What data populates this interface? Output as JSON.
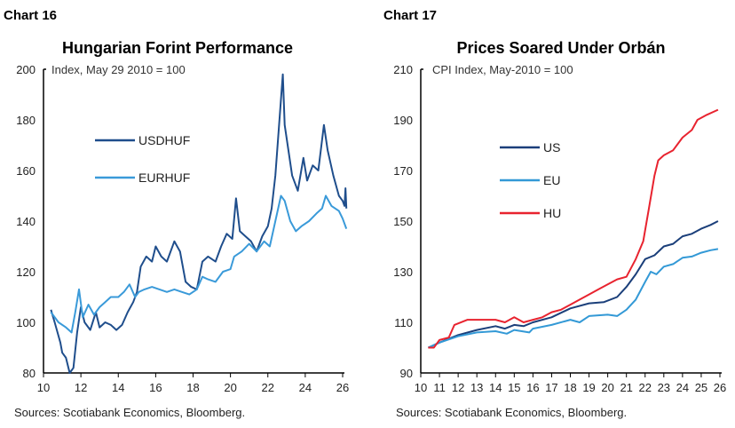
{
  "chart_data": [
    {
      "type": "line",
      "header": "Chart 16",
      "title": "Hungarian Forint Performance",
      "subtitle": "Index, May 29 2010 = 100",
      "source": "Sources: Scotiabank Economics, Bloomberg.",
      "xlim": [
        10,
        26
      ],
      "ylim": [
        80,
        200
      ],
      "x_ticks": [
        "10",
        "12",
        "14",
        "16",
        "18",
        "20",
        "22",
        "24",
        "26"
      ],
      "y_ticks": [
        "80",
        "100",
        "120",
        "140",
        "160",
        "180",
        "200"
      ],
      "legend_placement": "upper-left",
      "grid": false,
      "series": [
        {
          "name": "USDHUF",
          "color": "#1f4e8c",
          "x": [
            10.4,
            10.6,
            10.9,
            11.0,
            11.2,
            11.4,
            11.6,
            11.8,
            12.0,
            12.2,
            12.5,
            12.8,
            13.0,
            13.3,
            13.6,
            13.9,
            14.2,
            14.5,
            14.8,
            15.0,
            15.2,
            15.5,
            15.8,
            16.0,
            16.3,
            16.6,
            17.0,
            17.3,
            17.6,
            17.9,
            18.2,
            18.5,
            18.8,
            19.2,
            19.5,
            19.8,
            20.1,
            20.3,
            20.5,
            20.8,
            21.1,
            21.4,
            21.7,
            22.0,
            22.2,
            22.4,
            22.6,
            22.8,
            22.9,
            23.1,
            23.3,
            23.6,
            23.9,
            24.1,
            24.4,
            24.7,
            25.0,
            25.2,
            25.5,
            25.8,
            26.0,
            26.1,
            26.15,
            26.2
          ],
          "y": [
            105,
            100,
            92,
            88,
            86,
            80,
            82,
            96,
            106,
            100,
            97,
            104,
            98,
            100,
            99,
            97,
            99,
            104,
            108,
            112,
            122,
            126,
            124,
            130,
            126,
            124,
            132,
            128,
            116,
            114,
            113,
            124,
            126,
            124,
            130,
            135,
            133,
            149,
            136,
            134,
            132,
            128,
            134,
            138,
            145,
            158,
            178,
            198,
            178,
            168,
            158,
            152,
            165,
            156,
            162,
            160,
            178,
            168,
            158,
            150,
            148,
            146,
            153,
            145
          ]
        },
        {
          "name": "EURHUF",
          "color": "#3a9ad9",
          "x": [
            10.4,
            10.8,
            11.2,
            11.5,
            11.7,
            11.9,
            12.1,
            12.4,
            12.7,
            13.0,
            13.3,
            13.6,
            14.0,
            14.3,
            14.6,
            14.9,
            15.1,
            15.4,
            15.8,
            16.2,
            16.6,
            17.0,
            17.4,
            17.8,
            18.2,
            18.5,
            18.8,
            19.2,
            19.6,
            20.0,
            20.2,
            20.6,
            21.0,
            21.4,
            21.8,
            22.1,
            22.4,
            22.7,
            22.9,
            23.2,
            23.5,
            23.8,
            24.2,
            24.6,
            24.9,
            25.1,
            25.4,
            25.8,
            26.0,
            26.2
          ],
          "y": [
            104,
            100,
            98,
            96,
            104,
            113,
            102,
            107,
            103,
            106,
            108,
            110,
            110,
            112,
            115,
            110,
            112,
            113,
            114,
            113,
            112,
            113,
            112,
            111,
            113,
            118,
            117,
            116,
            120,
            121,
            126,
            128,
            131,
            128,
            132,
            130,
            140,
            150,
            148,
            140,
            136,
            138,
            140,
            143,
            145,
            150,
            146,
            144,
            141,
            137
          ]
        }
      ]
    },
    {
      "type": "line",
      "header": "Chart 17",
      "title": "Prices Soared Under Orbán",
      "subtitle": "CPI Index, May-2010 = 100",
      "source": "Sources: Scotiabank Economics, Bloomberg.",
      "xlim": [
        10,
        26
      ],
      "ylim": [
        90,
        210
      ],
      "x_ticks": [
        "10",
        "11",
        "12",
        "13",
        "14",
        "15",
        "16",
        "17",
        "18",
        "19",
        "20",
        "21",
        "22",
        "23",
        "24",
        "25",
        "26"
      ],
      "y_ticks": [
        "90",
        "110",
        "130",
        "150",
        "170",
        "190",
        "210"
      ],
      "legend_placement": "upper-left",
      "grid": false,
      "series": [
        {
          "name": "US",
          "color": "#1b3f7a",
          "x": [
            10.4,
            11,
            12,
            13,
            14,
            14.5,
            15,
            15.5,
            16,
            17,
            18,
            19,
            19.8,
            20.5,
            21,
            21.5,
            22,
            22.5,
            23,
            23.5,
            24,
            24.5,
            25,
            25.5,
            25.9
          ],
          "y": [
            100,
            102,
            105,
            107,
            108.5,
            107.5,
            109,
            108.5,
            110,
            112,
            115.5,
            117.5,
            118,
            120,
            124,
            129,
            135,
            136.5,
            140,
            141,
            144,
            145,
            147,
            148.5,
            150
          ]
        },
        {
          "name": "EU",
          "color": "#3399d6",
          "x": [
            10.4,
            11,
            12,
            13,
            14,
            14.6,
            15,
            15.8,
            16,
            17,
            18,
            18.5,
            19,
            20,
            20.5,
            21,
            21.5,
            22,
            22.3,
            22.6,
            23,
            23.5,
            24,
            24.5,
            25,
            25.5,
            25.9
          ],
          "y": [
            100,
            102,
            104.5,
            106,
            106.5,
            105.5,
            107,
            106,
            107.5,
            109,
            111,
            110,
            112.5,
            113,
            112.5,
            115,
            119,
            126,
            130,
            129,
            132,
            133,
            135.5,
            136,
            137.5,
            138.5,
            139
          ]
        },
        {
          "name": "HU",
          "color": "#e8232f",
          "x": [
            10.4,
            10.7,
            11.0,
            11.5,
            11.8,
            12.5,
            13.0,
            13.5,
            14.0,
            14.5,
            15.0,
            15.5,
            16.0,
            16.5,
            17.0,
            17.5,
            18.0,
            18.5,
            19.0,
            19.5,
            20.0,
            20.5,
            21.0,
            21.5,
            21.9,
            22.2,
            22.5,
            22.7,
            23.0,
            23.5,
            24.0,
            24.5,
            24.8,
            25.3,
            25.9
          ],
          "y": [
            100,
            100,
            103,
            104,
            109,
            111,
            111,
            111,
            111,
            110,
            112,
            110,
            111,
            112,
            114,
            115,
            117,
            119,
            121,
            123,
            125,
            127,
            128,
            135,
            142,
            155,
            168,
            174,
            176,
            178,
            183,
            186,
            190,
            192,
            194
          ]
        }
      ]
    }
  ]
}
